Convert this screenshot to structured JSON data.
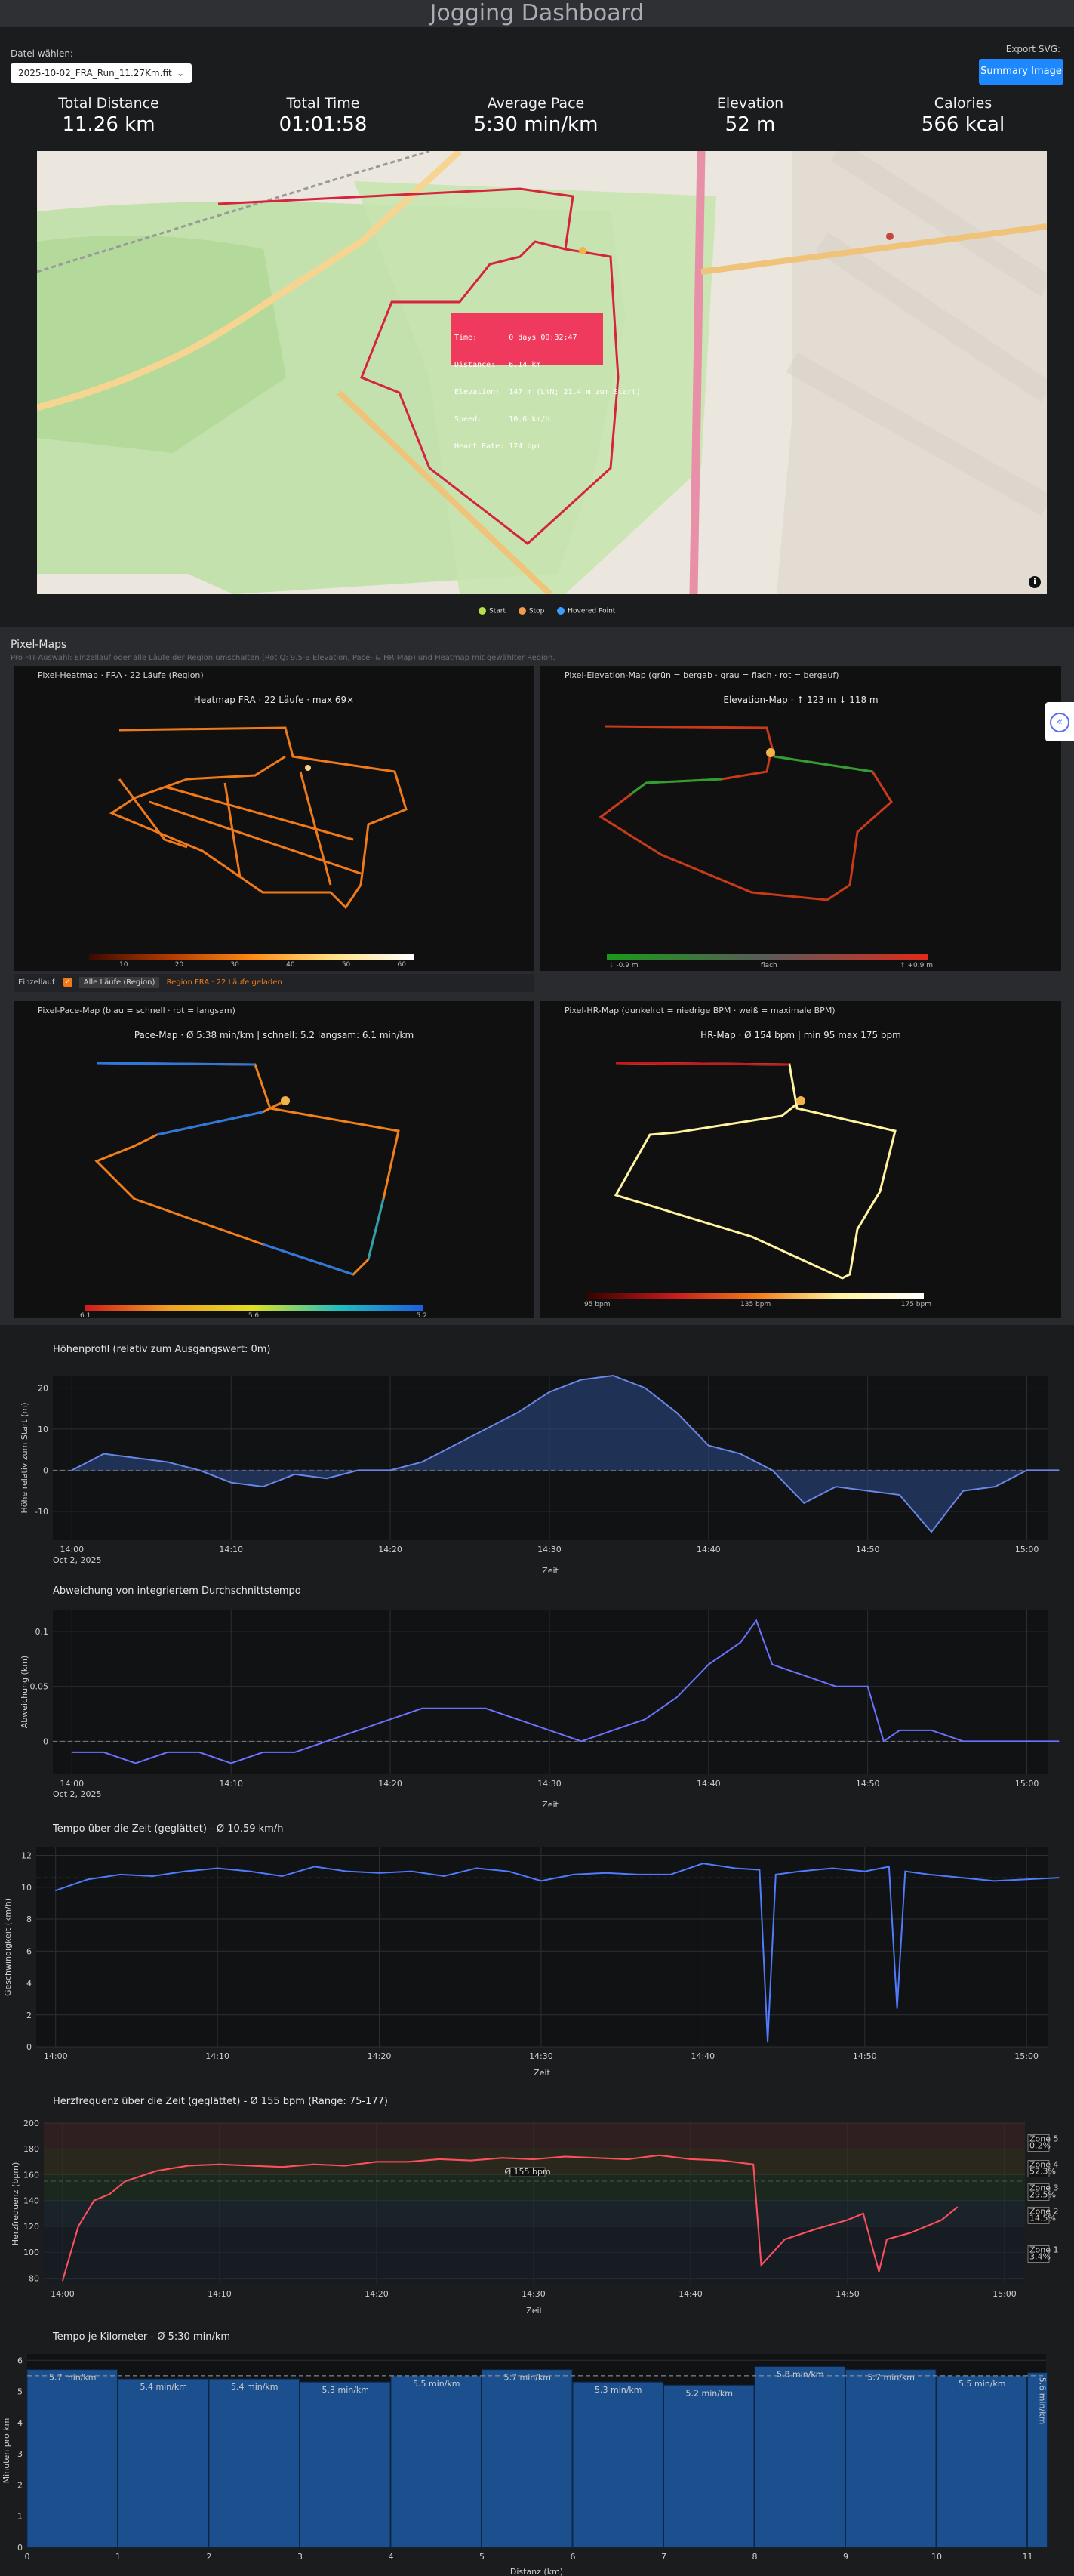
{
  "app": {
    "title": "Jogging Dashboard"
  },
  "file": {
    "label": "Datei wählen:",
    "selected": "2025-10-02_FRA_Run_11.27Km.fit"
  },
  "export": {
    "label": "Export SVG:",
    "button": "Summary Image"
  },
  "kpis": [
    {
      "label": "Total Distance",
      "value": "11.26 km"
    },
    {
      "label": "Total Time",
      "value": "01:01:58"
    },
    {
      "label": "Average Pace",
      "value": "5:30 min/km"
    },
    {
      "label": "Elevation",
      "value": "52 m"
    },
    {
      "label": "Calories",
      "value": "566 kcal"
    }
  ],
  "map": {
    "tooltip": [
      "Time:       0 days 00:32:47",
      "Distance:   6.14 km",
      "Elevation:  147 m (LNN; 21.4 m zum Start)",
      "Speed:      10.6 km/h",
      "Heart Rate: 174 bpm"
    ],
    "legend": [
      {
        "label": "Start",
        "color": "#b4e04a"
      },
      {
        "label": "Stop",
        "color": "#f09a4a"
      },
      {
        "label": "Hovered Point",
        "color": "#3aa0ff"
      }
    ],
    "info_icon": "info-icon"
  },
  "pixel_maps": {
    "title": "Pixel-Maps",
    "subtitle": "Pro FIT-Auswahl: Einzellauf oder alle Läufe der Region umschalten (Rot Q: 9.5-B Elevation, Pace- & HR-Map) und Heatmap mit gewählter Region.",
    "heatmap": {
      "panel_title": "Pixel-Heatmap · FRA · 22 Läufe (Region)",
      "title": "Heatmap FRA · 22 Läufe · max 69×",
      "ticks": [
        "10",
        "20",
        "30",
        "40",
        "50",
        "60"
      ]
    },
    "elevation": {
      "panel_title": "Pixel-Elevation-Map (grün = bergab · grau = flach · rot = bergauf)",
      "title": "Elevation-Map · ↑ 123 m  ↓ 118 m",
      "ticks": [
        "↓ -0.9 m",
        "flach",
        "↑ +0.9 m"
      ]
    },
    "toggle": {
      "single": "Einzellauf",
      "all": "Alle Läufe (Region)",
      "note": "Region FRA · 22 Läufe geladen"
    },
    "pace": {
      "panel_title": "Pixel-Pace-Map (blau = schnell · rot = langsam)",
      "title": "Pace-Map · Ø 5:38 min/km  |  schnell: 5.2  langsam: 6.1 min/km",
      "ticks": [
        "6.1",
        "5.6",
        "5.2"
      ]
    },
    "hr": {
      "panel_title": "Pixel-HR-Map (dunkelrot = niedrige BPM · weiß = maximale BPM)",
      "title": "HR-Map · Ø 154 bpm  |  min 95  max 175 bpm",
      "ticks": [
        "95 bpm",
        "135 bpm",
        "175 bpm"
      ]
    }
  },
  "colors": {
    "accent": "#1e88ff",
    "line": "#6a73ff",
    "hr": "#ff4f5e",
    "bars": "#1b4f8a"
  },
  "elev_chart": {
    "title": "Höhenprofil (relativ zum Ausgangswert: 0m)",
    "xlabel": "Zeit",
    "ylabel": "Höhe relativ zum Start (m)",
    "date": "Oct 2, 2025",
    "xticks": [
      "14:00",
      "14:10",
      "14:20",
      "14:30",
      "14:40",
      "14:50",
      "15:00"
    ],
    "yticks": [
      "20",
      "10",
      "0",
      "-10"
    ]
  },
  "dev_chart": {
    "title": "Abweichung von integriertem Durchschnittstempo",
    "xlabel": "Zeit",
    "ylabel": "Abweichung (km)",
    "date": "Oct 2, 2025",
    "xticks": [
      "14:00",
      "14:10",
      "14:20",
      "14:30",
      "14:40",
      "14:50",
      "15:00"
    ],
    "yticks": [
      "0.1",
      "0.05",
      "0"
    ]
  },
  "speed_chart": {
    "title": "Tempo über die Zeit (geglättet) - Ø 10.59 km/h",
    "xlabel": "Zeit",
    "ylabel": "Geschwindigkeit (km/h)",
    "xticks": [
      "14:00",
      "14:10",
      "14:20",
      "14:30",
      "14:40",
      "14:50",
      "15:00"
    ],
    "yticks": [
      "12",
      "10",
      "8",
      "6",
      "4",
      "2",
      "0"
    ]
  },
  "hr_chart": {
    "title": "Herzfrequenz über die Zeit (geglättet) - Ø 155 bpm (Range: 75-177)",
    "xlabel": "Zeit",
    "ylabel": "Herzfrequenz (bpm)",
    "annotation": "Ø 155 bpm",
    "xticks": [
      "14:00",
      "14:10",
      "14:20",
      "14:30",
      "14:40",
      "14:50",
      "15:00"
    ],
    "yticks": [
      "200",
      "180",
      "160",
      "140",
      "120",
      "100",
      "80"
    ],
    "zones": [
      "Zone 5 0.2%",
      "Zone 4 52.3%",
      "Zone 3 29.5%",
      "Zone 2 14.5%",
      "Zone 1 3.4%"
    ]
  },
  "chart_data": [
    {
      "type": "line",
      "title": "Höhenprofil (relativ zum Ausgangswert: 0m)",
      "xlabel": "Zeit",
      "ylabel": "Höhe relativ zum Start (m)",
      "ylim": [
        -17,
        23
      ],
      "x_minutes": [
        0,
        2,
        4,
        6,
        8,
        10,
        12,
        14,
        16,
        18,
        20,
        22,
        24,
        26,
        28,
        30,
        32,
        34,
        36,
        38,
        40,
        42,
        44,
        46,
        48,
        50,
        52,
        54,
        56,
        58,
        60,
        62
      ],
      "values": [
        0,
        4,
        3,
        2,
        0,
        -3,
        -4,
        -1,
        -2,
        0,
        0,
        2,
        6,
        10,
        14,
        19,
        22,
        23,
        20,
        14,
        6,
        4,
        0,
        -8,
        -4,
        -5,
        -6,
        -15,
        -5,
        -4,
        0,
        0
      ]
    },
    {
      "type": "line",
      "title": "Abweichung von integriertem Durchschnittstempo",
      "xlabel": "Zeit",
      "ylabel": "Abweichung (km)",
      "ylim": [
        -0.03,
        0.12
      ],
      "x_minutes": [
        0,
        2,
        4,
        6,
        8,
        10,
        12,
        14,
        16,
        18,
        20,
        22,
        24,
        26,
        28,
        30,
        32,
        34,
        36,
        38,
        40,
        42,
        43,
        44,
        46,
        48,
        50,
        51,
        52,
        54,
        56,
        58,
        60,
        62
      ],
      "values": [
        -0.01,
        -0.01,
        -0.02,
        -0.01,
        -0.01,
        -0.02,
        -0.01,
        -0.01,
        0.0,
        0.01,
        0.02,
        0.03,
        0.03,
        0.03,
        0.02,
        0.01,
        0.0,
        0.01,
        0.02,
        0.04,
        0.07,
        0.09,
        0.11,
        0.07,
        0.06,
        0.05,
        0.05,
        0.0,
        0.01,
        0.01,
        0.0,
        0.0,
        0.0,
        0.0
      ]
    },
    {
      "type": "line",
      "title": "Tempo über die Zeit (geglättet) - Ø 10.59 km/h",
      "xlabel": "Zeit",
      "ylabel": "Geschwindigkeit (km/h)",
      "ylim": [
        0,
        12.5
      ],
      "x_minutes": [
        0,
        2,
        4,
        6,
        8,
        10,
        12,
        14,
        16,
        18,
        20,
        22,
        24,
        26,
        28,
        30,
        32,
        34,
        36,
        38,
        40,
        42,
        43.5,
        44,
        44.5,
        46,
        48,
        50,
        51.5,
        52,
        52.5,
        54,
        56,
        58,
        60,
        62
      ],
      "values": [
        9.8,
        10.5,
        10.8,
        10.7,
        11.0,
        11.2,
        11.0,
        10.7,
        11.3,
        11.0,
        10.9,
        11.0,
        10.7,
        11.2,
        11.0,
        10.4,
        10.8,
        10.9,
        10.8,
        10.8,
        11.5,
        11.2,
        11.1,
        0.3,
        10.8,
        11.0,
        11.2,
        11.0,
        11.3,
        2.4,
        11.0,
        10.8,
        10.6,
        10.4,
        10.5,
        10.6
      ]
    },
    {
      "type": "line",
      "title": "Herzfrequenz über die Zeit (geglättet) - Ø 155 bpm (Range: 75-177)",
      "xlabel": "Zeit",
      "ylabel": "Herzfrequenz (bpm)",
      "ylim": [
        75,
        200
      ],
      "x_minutes": [
        0,
        1,
        2,
        3,
        4,
        6,
        8,
        10,
        12,
        14,
        16,
        18,
        20,
        22,
        24,
        26,
        28,
        30,
        32,
        34,
        36,
        38,
        40,
        42,
        44,
        44.5,
        46,
        48,
        50,
        51,
        52,
        52.5,
        54,
        56,
        57
      ],
      "values": [
        78,
        120,
        140,
        145,
        155,
        163,
        167,
        168,
        167,
        166,
        168,
        167,
        170,
        170,
        172,
        171,
        173,
        172,
        174,
        173,
        172,
        175,
        172,
        171,
        168,
        90,
        110,
        118,
        125,
        130,
        85,
        110,
        115,
        125,
        135
      ]
    },
    {
      "type": "bar",
      "title": "Tempo je Kilometer - Ø 5:30 min/km",
      "xlabel": "Distanz (km)",
      "ylabel": "Minuten pro km",
      "ylim": [
        0,
        6.2
      ],
      "categories": [
        "1",
        "2",
        "3",
        "4",
        "5",
        "6",
        "7",
        "8",
        "9",
        "10",
        "11",
        "12"
      ],
      "values": [
        5.7,
        5.4,
        5.4,
        5.3,
        5.5,
        5.7,
        5.3,
        5.2,
        5.8,
        5.7,
        5.5,
        5.6
      ],
      "labels": [
        "5.7 min/km",
        "5.4 min/km",
        "5.4 min/km",
        "5.3 min/km",
        "5.5 min/km",
        "5.7 min/km",
        "5.3 min/km",
        "5.2 min/km",
        "5.8 min/km",
        "5.7 min/km",
        "5.5 min/km",
        "5.6 min/km"
      ],
      "xticks": [
        "0",
        "1",
        "2",
        "3",
        "4",
        "5",
        "6",
        "7",
        "8",
        "9",
        "10",
        "11"
      ],
      "yticks": [
        "6",
        "5",
        "4",
        "3",
        "2",
        "1",
        "0"
      ]
    }
  ]
}
